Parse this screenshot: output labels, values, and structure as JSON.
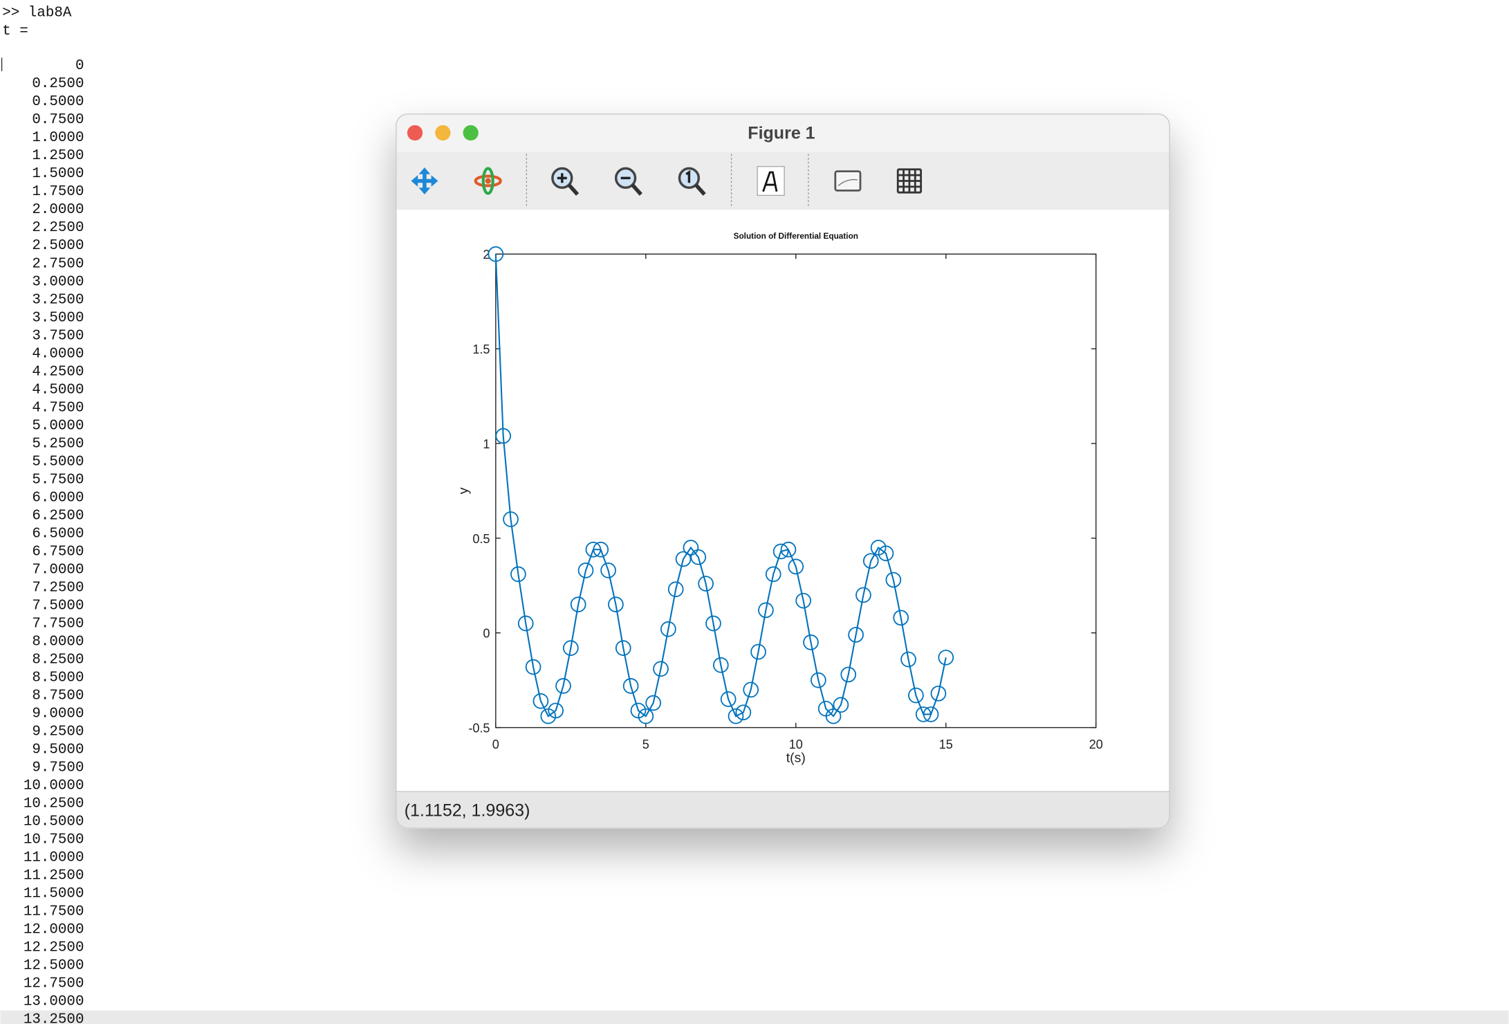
{
  "terminal": {
    "command": ">> lab8A",
    "variable": "t =",
    "values": [
      "0",
      "0.2500",
      "0.5000",
      "0.7500",
      "1.0000",
      "1.2500",
      "1.5000",
      "1.7500",
      "2.0000",
      "2.2500",
      "2.5000",
      "2.7500",
      "3.0000",
      "3.2500",
      "3.5000",
      "3.7500",
      "4.0000",
      "4.2500",
      "4.5000",
      "4.7500",
      "5.0000",
      "5.2500",
      "5.5000",
      "5.7500",
      "6.0000",
      "6.2500",
      "6.5000",
      "6.7500",
      "7.0000",
      "7.2500",
      "7.5000",
      "7.7500",
      "8.0000",
      "8.2500",
      "8.5000",
      "8.7500",
      "9.0000",
      "9.2500",
      "9.5000",
      "9.7500",
      "10.0000",
      "10.2500",
      "10.5000",
      "10.7500",
      "11.0000",
      "11.2500",
      "11.5000",
      "11.7500",
      "12.0000",
      "12.2500",
      "12.5000",
      "12.7500",
      "13.0000",
      "13.2500"
    ]
  },
  "window": {
    "title": "Figure 1",
    "status": "(1.1152, 1.9963)"
  },
  "chart_data": {
    "type": "line",
    "title": "Solution of Differential Equation",
    "x_label": "t(s)",
    "y_label": "y",
    "x": [
      0,
      0.25,
      0.5,
      0.75,
      1,
      1.25,
      1.5,
      1.75,
      2,
      2.25,
      2.5,
      2.75,
      3,
      3.25,
      3.5,
      3.75,
      4,
      4.25,
      4.5,
      4.75,
      5,
      5.25,
      5.5,
      5.75,
      6,
      6.25,
      6.5,
      6.75,
      7,
      7.25,
      7.5,
      7.75,
      8,
      8.25,
      8.5,
      8.75,
      9,
      9.25,
      9.5,
      9.75,
      10,
      10.25,
      10.5,
      10.75,
      11,
      11.25,
      11.5,
      11.75,
      12,
      12.25,
      12.5,
      12.75,
      13,
      13.25,
      13.5,
      13.75,
      14,
      14.25,
      14.5,
      14.75,
      15
    ],
    "values": [
      2.0,
      1.04,
      0.6,
      0.31,
      0.05,
      -0.18,
      -0.36,
      -0.44,
      -0.41,
      -0.28,
      -0.08,
      0.15,
      0.33,
      0.44,
      0.44,
      0.33,
      0.15,
      -0.08,
      -0.28,
      -0.41,
      -0.44,
      -0.37,
      -0.19,
      0.02,
      0.23,
      0.39,
      0.45,
      0.4,
      0.26,
      0.05,
      -0.17,
      -0.35,
      -0.44,
      -0.42,
      -0.3,
      -0.1,
      0.12,
      0.31,
      0.43,
      0.44,
      0.35,
      0.17,
      -0.05,
      -0.25,
      -0.4,
      -0.44,
      -0.38,
      -0.22,
      -0.01,
      0.2,
      0.38,
      0.45,
      0.42,
      0.28,
      0.08,
      -0.14,
      -0.33,
      -0.43,
      -0.43,
      -0.32,
      -0.13
    ],
    "color": "#0072bd",
    "marker": "circle",
    "xlim": [
      0,
      20
    ],
    "xticks": [
      0,
      5,
      10,
      15,
      20
    ],
    "ylim": [
      -0.5,
      2
    ],
    "yticks": [
      -0.5,
      0,
      0.5,
      1,
      1.5,
      2
    ],
    "grid": false
  }
}
